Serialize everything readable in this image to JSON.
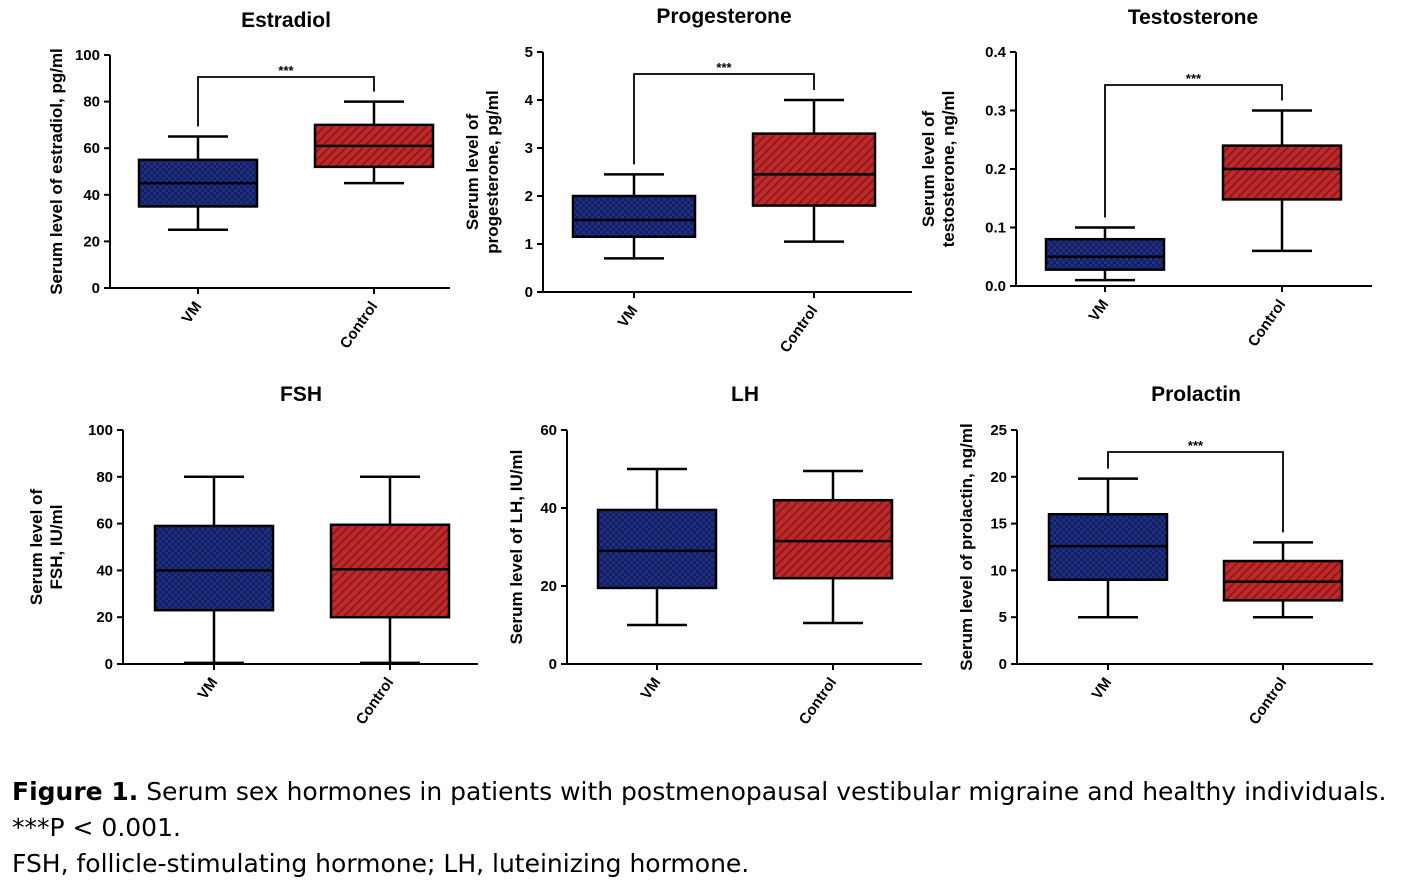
{
  "chart_data": [
    {
      "type": "box",
      "title": "Estradiol",
      "ylabel": [
        "Serum level of estradiol, pg/ml"
      ],
      "ylim": [
        0,
        100
      ],
      "yticks": [
        "0",
        "20",
        "40",
        "60",
        "80",
        "100"
      ],
      "categories": [
        "VM",
        "Control"
      ],
      "series": [
        {
          "name": "VM",
          "min": 25,
          "q1": 35,
          "median": 45,
          "q3": 55,
          "max": 65
        },
        {
          "name": "Control",
          "min": 45,
          "q1": 52,
          "median": 61,
          "q3": 70,
          "max": 80
        }
      ],
      "significance": "***"
    },
    {
      "type": "box",
      "title": "Progesterone",
      "ylabel": [
        "Serum level of",
        "progesterone, pg/ml"
      ],
      "ylim": [
        0,
        5
      ],
      "yticks": [
        "0",
        "1",
        "2",
        "3",
        "4",
        "5"
      ],
      "categories": [
        "VM",
        "Control"
      ],
      "series": [
        {
          "name": "VM",
          "min": 0.7,
          "q1": 1.15,
          "median": 1.5,
          "q3": 2.0,
          "max": 2.45
        },
        {
          "name": "Control",
          "min": 1.05,
          "q1": 1.8,
          "median": 2.45,
          "q3": 3.3,
          "max": 4.0
        }
      ],
      "significance": "***"
    },
    {
      "type": "box",
      "title": "Testosterone",
      "ylabel": [
        "Serum level of",
        "testosterone, ng/ml"
      ],
      "ylim": [
        0,
        0.4
      ],
      "yticks": [
        "0.0",
        "0.1",
        "0.2",
        "0.3",
        "0.4"
      ],
      "categories": [
        "VM",
        "Control"
      ],
      "series": [
        {
          "name": "VM",
          "min": 0.01,
          "q1": 0.028,
          "median": 0.05,
          "q3": 0.08,
          "max": 0.1
        },
        {
          "name": "Control",
          "min": 0.06,
          "q1": 0.148,
          "median": 0.2,
          "q3": 0.24,
          "max": 0.3
        }
      ],
      "significance": "***"
    },
    {
      "type": "box",
      "title": "FSH",
      "ylabel": [
        "Serum level of",
        "FSH, IU/ml"
      ],
      "ylim": [
        0,
        100
      ],
      "yticks": [
        "0",
        "20",
        "40",
        "60",
        "80",
        "100"
      ],
      "categories": [
        "VM",
        "Control"
      ],
      "series": [
        {
          "name": "VM",
          "min": 0.5,
          "q1": 23,
          "median": 40,
          "q3": 59,
          "max": 80
        },
        {
          "name": "Control",
          "min": 0.5,
          "q1": 20,
          "median": 40.5,
          "q3": 59.5,
          "max": 80
        }
      ],
      "significance": ""
    },
    {
      "type": "box",
      "title": "LH",
      "ylabel": [
        "Serum level of LH, IU/ml"
      ],
      "ylim": [
        0,
        60
      ],
      "yticks": [
        "0",
        "20",
        "40",
        "60"
      ],
      "categories": [
        "VM",
        "Control"
      ],
      "series": [
        {
          "name": "VM",
          "min": 10,
          "q1": 19.5,
          "median": 29,
          "q3": 39.5,
          "max": 50
        },
        {
          "name": "Control",
          "min": 10.5,
          "q1": 22,
          "median": 31.5,
          "q3": 42,
          "max": 49.5
        }
      ],
      "significance": ""
    },
    {
      "type": "box",
      "title": "Prolactin",
      "ylabel": [
        "Serum level of prolactin, ng/ml"
      ],
      "ylim": [
        0,
        25
      ],
      "yticks": [
        "0",
        "5",
        "10",
        "15",
        "20",
        "25"
      ],
      "categories": [
        "VM",
        "Control"
      ],
      "series": [
        {
          "name": "VM",
          "min": 5,
          "q1": 9,
          "median": 12.6,
          "q3": 16,
          "max": 19.8
        },
        {
          "name": "Control",
          "min": 5,
          "q1": 6.8,
          "median": 8.8,
          "q3": 11,
          "max": 13
        }
      ],
      "significance": "***"
    }
  ],
  "colors": {
    "vm": "#1f2f86",
    "control": "#c0282a"
  },
  "caption": {
    "label": "Figure 1.",
    "text": "Serum sex hormones in patients with postmenopausal vestibular migraine and healthy individuals.",
    "note": "***P < 0.001.",
    "abbreviations": "FSH, follicle-stimulating hormone; LH, luteinizing hormone."
  }
}
